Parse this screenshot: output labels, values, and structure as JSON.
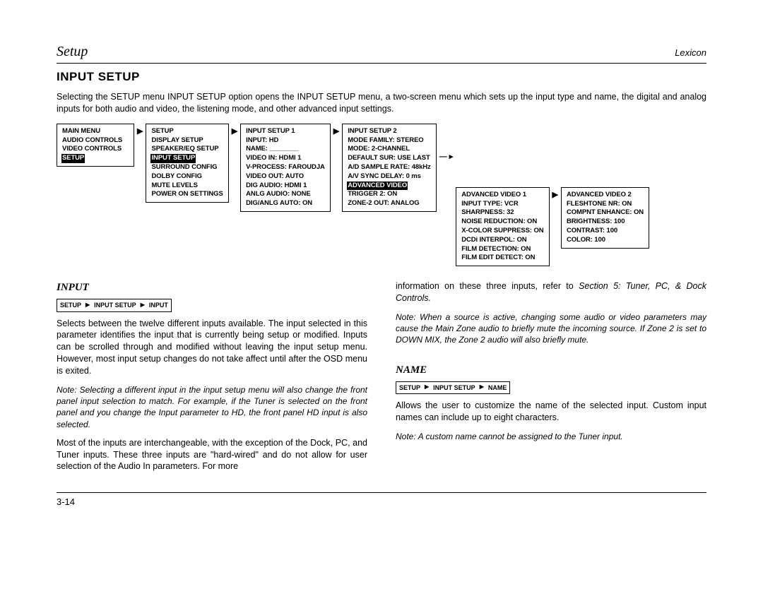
{
  "header": {
    "chapter": "Setup",
    "brand": "Lexicon"
  },
  "title": "INPUT SETUP",
  "intro": "Selecting the SETUP menu INPUT SETUP option opens the INPUT SETUP menu, a two-screen menu which sets up the input type and name, the digital and analog inputs for both audio and video, the listening mode, and other advanced input settings.",
  "menus": {
    "main": {
      "title": "MAIN MENU",
      "items": [
        "AUDIO CONTROLS",
        "VIDEO CONTROLS",
        "SETUP"
      ],
      "selected": 2
    },
    "setup": {
      "title": "SETUP",
      "items": [
        "DISPLAY SETUP",
        "SPEAKER/EQ SETUP",
        "INPUT SETUP",
        "SURROUND CONFIG",
        "DOLBY CONFIG",
        "MUTE LEVELS",
        "POWER ON SETTINGS"
      ],
      "selected": 2
    },
    "is1": {
      "title": "INPUT SETUP 1",
      "items": [
        "INPUT: HD",
        "NAME: ________",
        "VIDEO IN: HDMI 1",
        "V-PROCESS: FAROUDJA",
        "VIDEO OUT: AUTO",
        "DIG AUDIO: HDMI 1",
        "ANLG AUDIO: NONE",
        "DIG/ANLG AUTO: ON"
      ]
    },
    "is2": {
      "title": "INPUT SETUP 2",
      "items": [
        "MODE FAMILY: STEREO",
        "MODE: 2-CHANNEL",
        "DEFAULT SUR: USE LAST",
        "A/D SAMPLE RATE: 48kHz",
        "A/V SYNC DELAY: 0 ms",
        "ADVANCED VIDEO",
        "TRIGGER 2: ON",
        "ZONE-2 OUT: ANALOG"
      ],
      "selected": 5
    },
    "av1": {
      "title": "ADVANCED VIDEO 1",
      "items": [
        "INPUT TYPE: VCR",
        "SHARPNESS: 32",
        "NOISE REDUCTION: ON",
        "X-COLOR SUPPRESS: ON",
        "DCDi INTERPOL: ON",
        "FILM DETECTION: ON",
        "FILM EDIT DETECT: ON"
      ]
    },
    "av2": {
      "title": "ADVANCED VIDEO 2",
      "items": [
        "FLESHTONE NR: ON",
        "COMPNT ENHANCE: ON",
        "BRIGHTNESS: 100",
        "CONTRAST: 100",
        "COLOR: 100"
      ]
    }
  },
  "left": {
    "heading": "INPUT",
    "crumb": [
      "SETUP",
      "INPUT SETUP",
      "INPUT"
    ],
    "p1": "Selects between the twelve different inputs available. The input selected in this parameter identifies the input that is currently being setup or modified. Inputs can be scrolled through and modified without leaving the input setup menu. However, most input setup changes do not take affect until after the OSD menu is exited.",
    "n1": "Note: Selecting a different input in the input setup menu will also change the front panel input selection to match. For example, if the Tuner is selected on the front panel and you change the Input parameter to HD, the front panel HD input is also selected.",
    "p2": "Most of the inputs are interchangeable, with the exception of the Dock, PC, and Tuner inputs. These three inputs are \"hard-wired\" and do not allow for user selection of the Audio In parameters. For more"
  },
  "right": {
    "cont_a": "information on these three inputs, refer to ",
    "cont_i": "Section 5: Tuner, PC, & Dock Controls.",
    "n1": "Note: When a source is active, changing some audio or video parameters may cause the Main Zone audio to briefly mute the incoming source. If Zone 2 is set to DOWN MIX, the Zone 2 audio will also briefly mute.",
    "heading": "NAME",
    "crumb": [
      "SETUP",
      "INPUT SETUP",
      "NAME"
    ],
    "p1": "Allows the user to customize the name of the selected input. Custom input names can include up to eight characters.",
    "n2": "Note: A custom name cannot be assigned to the Tuner input."
  },
  "pagenum": "3-14"
}
